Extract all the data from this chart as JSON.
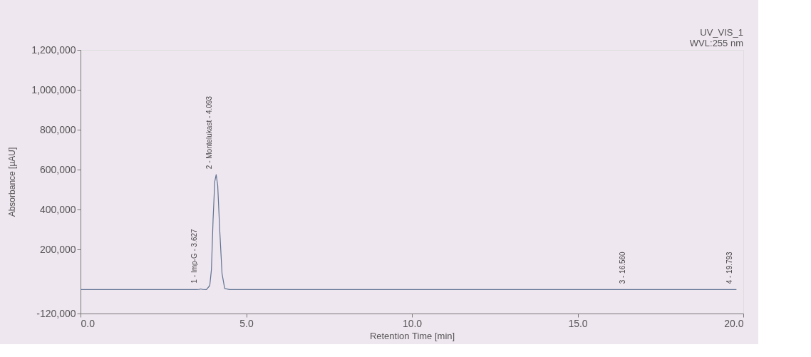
{
  "chart_data": {
    "type": "line",
    "xlabel": "Retention Time [min]",
    "ylabel": "Absorbance [µAU]",
    "x": [
      0,
      1,
      2,
      3,
      3.5,
      3.58,
      3.627,
      3.68,
      3.8,
      3.9,
      3.95,
      4.0,
      4.05,
      4.093,
      4.14,
      4.2,
      4.27,
      4.35,
      4.5,
      6,
      8,
      10,
      12,
      14,
      16.0,
      16.56,
      17.1,
      18,
      19.4,
      19.793
    ],
    "series": [
      {
        "color": "#5f7393",
        "values": [
          0,
          0,
          0,
          0,
          0,
          1000,
          3000,
          1000,
          0,
          20000,
          100000,
          350000,
          540000,
          575000,
          520000,
          300000,
          80000,
          5000,
          0,
          0,
          0,
          0,
          0,
          0,
          0,
          0,
          0,
          0,
          0,
          0
        ]
      }
    ],
    "xlim": [
      0,
      20
    ],
    "xticks": [
      {
        "value": 0,
        "label": "0.0"
      },
      {
        "value": 5,
        "label": "5.0"
      },
      {
        "value": 10,
        "label": "10.0"
      },
      {
        "value": 15,
        "label": "15.0"
      },
      {
        "value": 20,
        "label": "20.0"
      }
    ],
    "ylim": [
      -120000,
      1200000
    ],
    "yticks": [
      {
        "value": -120000,
        "label": "-120,000"
      },
      {
        "value": 200000,
        "label": "200,000"
      },
      {
        "value": 400000,
        "label": "400,000"
      },
      {
        "value": 600000,
        "label": "600,000"
      },
      {
        "value": 800000,
        "label": "800,000"
      },
      {
        "value": 1000000,
        "label": "1,000,000"
      },
      {
        "value": 1200000,
        "label": "1,200,000"
      }
    ],
    "grid": false,
    "marker": "none",
    "line_style": "solid",
    "annotations": [
      {
        "text": "1 - Imp-G - 3.627",
        "x": 3.627,
        "y": 3000
      },
      {
        "text": "2 - Montelukast - 4.093",
        "x": 4.093,
        "y": 575000
      },
      {
        "text": "3 - 16.560",
        "x": 16.56,
        "y": 0
      },
      {
        "text": "4 - 19.793",
        "x": 19.793,
        "y": 0
      },
      "UV_VIS_1",
      "WVL:255 nm"
    ]
  }
}
